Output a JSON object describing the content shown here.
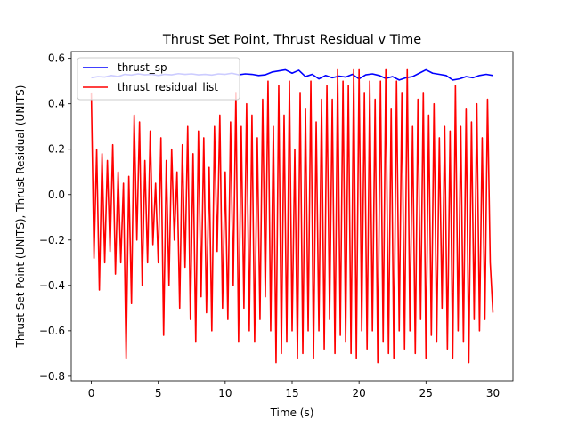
{
  "chart_data": {
    "type": "line",
    "title": "Thrust Set Point, Thrust Residual v Time",
    "xlabel": "Time (s)",
    "ylabel": "Thrust Set Point (UNITS), Thrust Residual (UNITS)",
    "xlim": [
      -1.5,
      31.5
    ],
    "ylim": [
      -0.82,
      0.63
    ],
    "xticks": [
      0,
      5,
      10,
      15,
      20,
      25,
      30
    ],
    "xtick_labels": [
      "0",
      "5",
      "10",
      "15",
      "20",
      "25",
      "30"
    ],
    "yticks": [
      -0.8,
      -0.6,
      -0.4,
      -0.2,
      0.0,
      0.2,
      0.4,
      0.6
    ],
    "ytick_labels": [
      "−0.8",
      "−0.6",
      "−0.4",
      "−0.2",
      "0.0",
      "0.2",
      "0.4",
      "0.6"
    ],
    "grid": false,
    "legend": "top-left",
    "series": [
      {
        "name": "thrust_sp",
        "color": "#0000ff",
        "x": [
          0,
          0.5,
          1,
          1.5,
          2,
          2.5,
          3,
          3.5,
          4,
          4.5,
          5,
          5.5,
          6,
          6.5,
          7,
          7.5,
          8,
          8.5,
          9,
          9.5,
          10,
          10.5,
          11,
          11.5,
          12,
          12.5,
          13,
          13.5,
          14,
          14.5,
          15,
          15.5,
          16,
          16.5,
          17,
          17.5,
          18,
          18.5,
          19,
          19.5,
          20,
          20.5,
          21,
          21.5,
          22,
          22.5,
          23,
          23.5,
          24,
          24.5,
          25,
          25.5,
          26,
          26.5,
          27,
          27.5,
          28,
          28.5,
          29,
          29.5,
          30
        ],
        "values": [
          0.515,
          0.52,
          0.518,
          0.525,
          0.52,
          0.53,
          0.527,
          0.532,
          0.528,
          0.53,
          0.525,
          0.53,
          0.528,
          0.533,
          0.53,
          0.532,
          0.528,
          0.53,
          0.527,
          0.532,
          0.53,
          0.535,
          0.528,
          0.532,
          0.53,
          0.525,
          0.528,
          0.54,
          0.545,
          0.55,
          0.535,
          0.548,
          0.52,
          0.53,
          0.51,
          0.525,
          0.515,
          0.522,
          0.518,
          0.53,
          0.51,
          0.528,
          0.532,
          0.525,
          0.512,
          0.52,
          0.505,
          0.515,
          0.52,
          0.535,
          0.55,
          0.535,
          0.53,
          0.525,
          0.505,
          0.51,
          0.52,
          0.515,
          0.525,
          0.53,
          0.525
        ]
      },
      {
        "name": "thrust_residual_list",
        "color": "#ff0000",
        "x": [
          0,
          0.2,
          0.4,
          0.6,
          0.8,
          1,
          1.2,
          1.4,
          1.6,
          1.8,
          2,
          2.2,
          2.4,
          2.6,
          2.8,
          3,
          3.2,
          3.4,
          3.6,
          3.8,
          4,
          4.2,
          4.4,
          4.6,
          4.8,
          5,
          5.2,
          5.4,
          5.6,
          5.8,
          6,
          6.2,
          6.4,
          6.6,
          6.8,
          7,
          7.2,
          7.4,
          7.6,
          7.8,
          8,
          8.2,
          8.4,
          8.6,
          8.8,
          9,
          9.2,
          9.4,
          9.6,
          9.8,
          10,
          10.2,
          10.4,
          10.6,
          10.8,
          11,
          11.2,
          11.4,
          11.6,
          11.8,
          12,
          12.2,
          12.4,
          12.6,
          12.8,
          13,
          13.2,
          13.4,
          13.6,
          13.8,
          14,
          14.2,
          14.4,
          14.6,
          14.8,
          15,
          15.2,
          15.4,
          15.6,
          15.8,
          16,
          16.2,
          16.4,
          16.6,
          16.8,
          17,
          17.2,
          17.4,
          17.6,
          17.8,
          18,
          18.2,
          18.4,
          18.6,
          18.8,
          19,
          19.2,
          19.4,
          19.6,
          19.8,
          20,
          20.2,
          20.4,
          20.6,
          20.8,
          21,
          21.2,
          21.4,
          21.6,
          21.8,
          22,
          22.2,
          22.4,
          22.6,
          22.8,
          23,
          23.2,
          23.4,
          23.6,
          23.8,
          24,
          24.2,
          24.4,
          24.6,
          24.8,
          25,
          25.2,
          25.4,
          25.6,
          25.8,
          26,
          26.2,
          26.4,
          26.6,
          26.8,
          27,
          27.2,
          27.4,
          27.6,
          27.8,
          28,
          28.2,
          28.4,
          28.6,
          28.8,
          29,
          29.2,
          29.4,
          29.6,
          29.8,
          30
        ],
        "values": [
          0.45,
          -0.28,
          0.2,
          -0.42,
          0.18,
          -0.3,
          0.15,
          -0.25,
          0.22,
          -0.35,
          0.1,
          -0.3,
          0.05,
          -0.72,
          0.08,
          -0.48,
          0.35,
          -0.2,
          0.32,
          -0.4,
          0.15,
          -0.3,
          0.28,
          -0.22,
          0.05,
          -0.3,
          0.25,
          -0.62,
          0.15,
          -0.4,
          0.2,
          -0.2,
          0.1,
          -0.5,
          0.22,
          -0.32,
          0.3,
          -0.55,
          0.18,
          -0.65,
          0.28,
          -0.45,
          0.25,
          -0.52,
          0.12,
          -0.6,
          0.3,
          -0.25,
          0.35,
          -0.5,
          0.1,
          -0.55,
          0.32,
          -0.4,
          0.45,
          -0.65,
          0.3,
          -0.5,
          0.4,
          -0.6,
          0.35,
          -0.65,
          0.25,
          -0.55,
          0.42,
          -0.45,
          0.5,
          -0.6,
          0.3,
          -0.74,
          0.48,
          -0.7,
          0.35,
          -0.65,
          0.5,
          -0.6,
          0.2,
          -0.72,
          0.45,
          -0.7,
          0.38,
          -0.6,
          0.5,
          -0.72,
          0.32,
          -0.6,
          0.42,
          -0.68,
          0.48,
          -0.55,
          0.42,
          -0.7,
          0.55,
          -0.62,
          0.5,
          -0.65,
          0.48,
          -0.7,
          0.55,
          -0.72,
          0.55,
          -0.6,
          0.45,
          -0.68,
          0.5,
          -0.6,
          0.42,
          -0.74,
          0.5,
          -0.65,
          0.55,
          -0.7,
          0.38,
          -0.72,
          0.5,
          -0.6,
          0.45,
          -0.68,
          0.55,
          -0.6,
          0.3,
          -0.7,
          0.42,
          -0.55,
          0.45,
          -0.72,
          0.35,
          -0.62,
          0.4,
          -0.65,
          0.25,
          -0.5,
          0.3,
          -0.68,
          0.28,
          -0.72,
          0.48,
          -0.6,
          0.3,
          -0.65,
          0.38,
          -0.74,
          0.32,
          -0.55,
          0.4,
          -0.6,
          0.25,
          -0.55,
          0.42,
          -0.3,
          -0.52
        ]
      }
    ]
  }
}
